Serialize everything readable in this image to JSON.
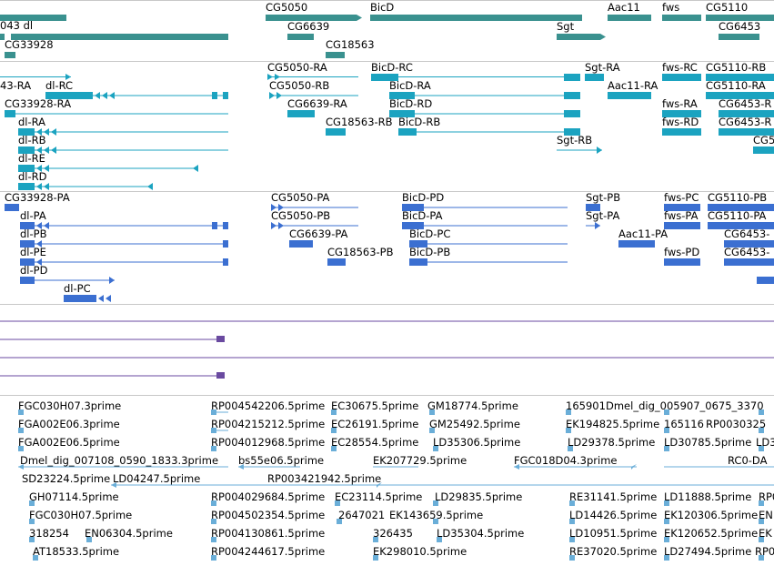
{
  "colors": {
    "gene": "#3a918f",
    "transcript": "#1ba3c0",
    "protein": "#3b6fd1",
    "purple": "#6a4aa0",
    "est": "#6aaed8",
    "separator": "#c8c8c8"
  },
  "gene_track": {
    "labels": [
      "043 dl",
      "CG5050",
      "BicD",
      "Aac11",
      "fws",
      "CG5110",
      "CG6639",
      "CG33928",
      "CG18563",
      "Sgt",
      "CG6453"
    ]
  },
  "transcript_track": {
    "labels": [
      "43-RA",
      "dl-RC",
      "CG33928-RA",
      "dl-RA",
      "dl-RB",
      "dl-RE",
      "dl-RD",
      "CG5050-RA",
      "CG5050-RB",
      "CG6639-RA",
      "CG18563-RB",
      "BicD-RC",
      "BicD-RA",
      "BicD-RD",
      "BicD-RB",
      "Sgt-RA",
      "Sgt-RB",
      "Aac11-RA",
      "fws-RC",
      "fws-RA",
      "fws-RD",
      "CG5110-RB",
      "CG5110-RA",
      "CG6453-R",
      "CG6453-R",
      "CG5"
    ]
  },
  "protein_track": {
    "labels": [
      "CG33928-PA",
      "dl-PA",
      "dl-PB",
      "dl-PE",
      "dl-PD",
      "dl-PC",
      "CG5050-PA",
      "CG5050-PB",
      "CG6639-PA",
      "CG18563-PB",
      "BicD-PD",
      "BicD-PA",
      "BicD-PC",
      "BicD-PB",
      "Sgt-PB",
      "Sgt-PA",
      "Aac11-PA",
      "fws-PC",
      "fws-PA",
      "fws-PD",
      "CG5110-PB",
      "CG5110-PA",
      "CG6453-",
      "CG6453-"
    ]
  },
  "est_track": {
    "labels": [
      "FGC030H07.3prime",
      "FGA002E06.3prime",
      "FGA002E06.5prime",
      "Dmel_dig_007108_0590_1833.3prime",
      "SD23224.5prime",
      "LD04247.5prime",
      "GH07114.5prime",
      "FGC030H07.5prime",
      "318254",
      "EN06304.5prime",
      "AT18533.5prime",
      "RP004542206.5prime",
      "RP004215212.5prime",
      "RP004012968.5prime",
      "bs55e06.5prime",
      "RP003421942.5prime",
      "RP004029684.5prime",
      "RP004502354.5prime",
      "RP004130861.5prime",
      "RP004244617.5prime",
      "EC30675.5prime",
      "EC26191.5prime",
      "EC28554.5prime",
      "EK207729.5prime",
      "EC23114.5prime",
      "2647021",
      "326435",
      "EK298010.5prime",
      "GM18774.5prime",
      "GM25492.5prime",
      "LD35306.5prime",
      "LD29835.5prime",
      "EK143659.5prime",
      "LD35304.5prime",
      "FGC018D04.3prime",
      "165901",
      "Dmel_dig_005907_0675_3370",
      "EK194825.5prime",
      "165116",
      "RP0030325",
      "LD29378.5prime",
      "LD30785.5prime",
      "LD3",
      "RC0-DA",
      "RE31141.5prime",
      "LD11888.5prime",
      "RP0",
      "LD14426.5prime",
      "EK120306.5prime",
      "EN",
      "LD10951.5prime",
      "EK120652.5prime",
      "EK",
      "RE37020.5prime",
      "LD27494.5prime",
      "RP0"
    ]
  }
}
